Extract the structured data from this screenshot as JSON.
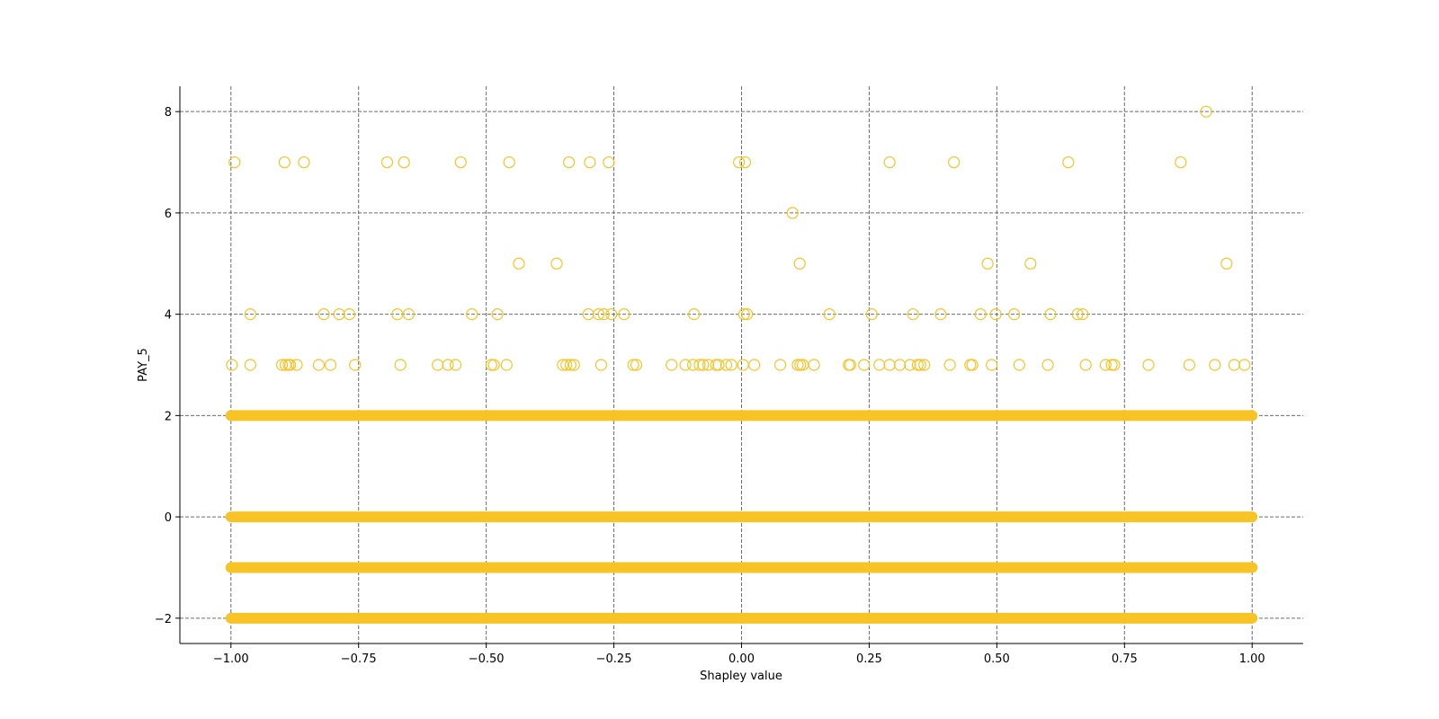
{
  "chart_data": {
    "type": "scatter",
    "title": "",
    "xlabel": "Shapley value",
    "ylabel": "PAY_5",
    "xlim": [
      -1.1,
      1.1
    ],
    "ylim": [
      -2.5,
      8.5
    ],
    "x_ticks": [
      -1.0,
      -0.75,
      -0.5,
      -0.25,
      0.0,
      0.25,
      0.5,
      0.75,
      1.0
    ],
    "x_tick_labels": [
      "−1.00",
      "−0.75",
      "−0.50",
      "−0.25",
      "0.00",
      "0.25",
      "0.50",
      "0.75",
      "1.00"
    ],
    "y_ticks": [
      -2,
      0,
      2,
      4,
      6,
      8
    ],
    "y_tick_labels": [
      "−2",
      "0",
      "2",
      "4",
      "6",
      "8"
    ],
    "grid": true,
    "marker": "hollow-circle",
    "marker_color": "#f7c325",
    "dense_rows": [
      {
        "y": -2,
        "x_range": [
          -1.0,
          1.0
        ]
      },
      {
        "y": -1,
        "x_range": [
          -1.0,
          1.0
        ]
      },
      {
        "y": 0,
        "x_range": [
          -1.0,
          1.0
        ]
      },
      {
        "y": 2,
        "x_range": [
          -1.0,
          1.0
        ]
      }
    ],
    "series": [
      {
        "y": 8,
        "x": [
          0.91
        ]
      },
      {
        "y": 7,
        "x": [
          -0.993,
          -0.895,
          -0.857,
          -0.694,
          -0.661,
          -0.55,
          -0.455,
          -0.338,
          -0.297,
          -0.26,
          -0.005,
          0.007,
          0.29,
          0.416,
          0.64,
          0.86
        ]
      },
      {
        "y": 6,
        "x": [
          0.1
        ]
      },
      {
        "y": 5,
        "x": [
          -0.436,
          -0.362,
          0.114,
          0.482,
          0.566,
          0.95
        ]
      },
      {
        "y": 4,
        "x": [
          -0.962,
          -0.818,
          -0.788,
          -0.768,
          -0.674,
          -0.652,
          -0.528,
          -0.478,
          -0.3,
          -0.28,
          -0.27,
          -0.255,
          -0.23,
          -0.093,
          0.005,
          0.011,
          0.172,
          0.255,
          0.336,
          0.39,
          0.468,
          0.498,
          0.534,
          0.605,
          0.658,
          0.668
        ]
      },
      {
        "y": 3,
        "x": [
          -0.998,
          -0.962,
          -0.9,
          -0.893,
          -0.887,
          -0.884,
          -0.871,
          -0.828,
          -0.805,
          -0.757,
          -0.668,
          -0.595,
          -0.575,
          -0.56,
          -0.49,
          -0.485,
          -0.46,
          -0.35,
          -0.343,
          -0.335,
          -0.328,
          -0.275,
          -0.212,
          -0.206,
          -0.137,
          -0.11,
          -0.095,
          -0.082,
          -0.075,
          -0.065,
          -0.05,
          -0.045,
          -0.03,
          -0.02,
          0.003,
          0.025,
          0.076,
          0.11,
          0.115,
          0.12,
          0.142,
          0.21,
          0.213,
          0.24,
          0.27,
          0.29,
          0.31,
          0.33,
          0.345,
          0.35,
          0.358,
          0.408,
          0.448,
          0.452,
          0.49,
          0.544,
          0.6,
          0.674,
          0.713,
          0.725,
          0.73,
          0.797,
          0.877,
          0.927,
          0.965,
          0.985
        ]
      }
    ]
  }
}
